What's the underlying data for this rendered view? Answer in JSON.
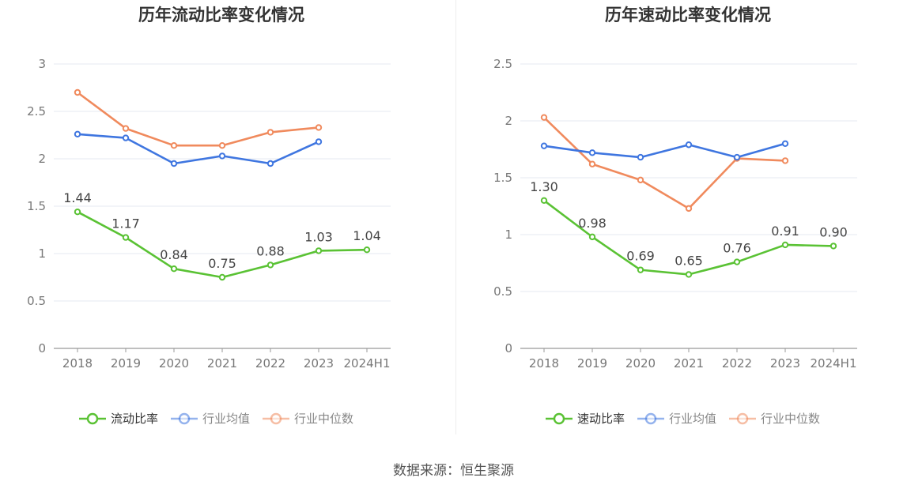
{
  "source_text": "数据来源：恒生聚源",
  "chart_data": [
    {
      "type": "line",
      "title": "历年流动比率变化情况",
      "categories": [
        "2018",
        "2019",
        "2020",
        "2021",
        "2022",
        "2023",
        "2024H1"
      ],
      "ylim": [
        0,
        3
      ],
      "yticks": [
        "0",
        "0.5",
        "1",
        "1.5",
        "2",
        "2.5",
        "3"
      ],
      "grid": true,
      "legend_position": "bottom-center",
      "series": [
        {
          "name": "流动比率",
          "color": "#5ac234",
          "values": [
            1.44,
            1.17,
            0.84,
            0.75,
            0.88,
            1.03,
            1.04
          ],
          "labels": [
            "1.44",
            "1.17",
            "0.84",
            "0.75",
            "0.88",
            "1.03",
            "1.04"
          ]
        },
        {
          "name": "行业均值",
          "color": "#3f76e0",
          "values": [
            2.26,
            2.22,
            1.95,
            2.03,
            1.95,
            2.18,
            null
          ]
        },
        {
          "name": "行业中位数",
          "color": "#f08a5d",
          "values": [
            2.7,
            2.32,
            2.14,
            2.14,
            2.28,
            2.33,
            null
          ]
        }
      ]
    },
    {
      "type": "line",
      "title": "历年速动比率变化情况",
      "categories": [
        "2018",
        "2019",
        "2020",
        "2021",
        "2022",
        "2023",
        "2024H1"
      ],
      "ylim": [
        0,
        2.5
      ],
      "yticks": [
        "0",
        "0.5",
        "1",
        "1.5",
        "2",
        "2.5"
      ],
      "grid": true,
      "legend_position": "bottom-center",
      "series": [
        {
          "name": "速动比率",
          "color": "#5ac234",
          "values": [
            1.3,
            0.98,
            0.69,
            0.65,
            0.76,
            0.91,
            0.9
          ],
          "labels": [
            "1.30",
            "0.98",
            "0.69",
            "0.65",
            "0.76",
            "0.91",
            "0.90"
          ]
        },
        {
          "name": "行业均值",
          "color": "#3f76e0",
          "values": [
            1.78,
            1.72,
            1.68,
            1.79,
            1.68,
            1.8,
            null
          ]
        },
        {
          "name": "行业中位数",
          "color": "#f08a5d",
          "values": [
            2.03,
            1.62,
            1.48,
            1.23,
            1.67,
            1.65,
            null
          ]
        }
      ]
    }
  ]
}
